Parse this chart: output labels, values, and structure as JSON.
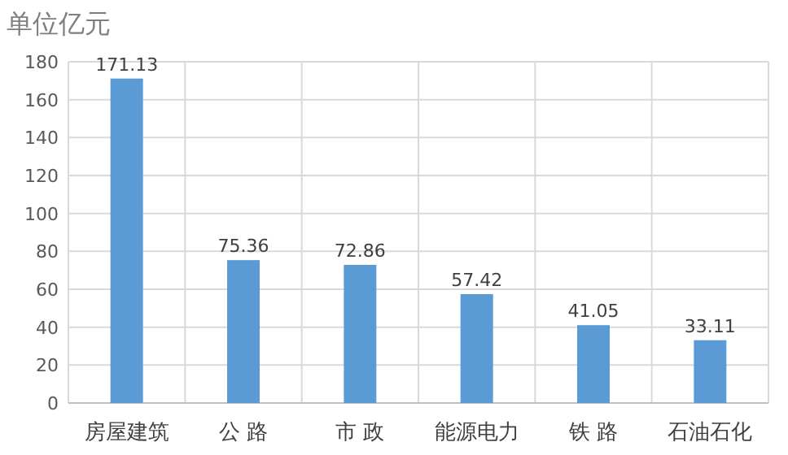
{
  "chart_data": {
    "type": "bar",
    "title": "单位亿元",
    "categories": [
      "房屋建筑",
      "公 路",
      "市 政",
      "能源电力",
      "铁 路",
      "石油石化"
    ],
    "values": [
      171.13,
      75.36,
      72.86,
      57.42,
      41.05,
      33.11
    ],
    "color": "#5b9bd5",
    "ylim": [
      0,
      180
    ],
    "yticks": [
      0,
      20,
      40,
      60,
      80,
      100,
      120,
      140,
      160,
      180
    ],
    "grid": true,
    "data_labels": true
  }
}
